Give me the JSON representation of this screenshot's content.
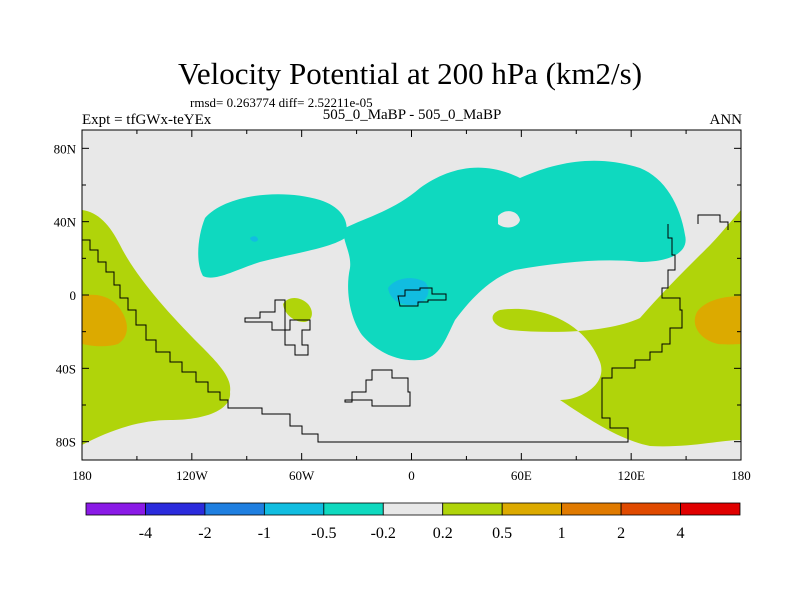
{
  "chart_data": {
    "type": "contour-map",
    "title": "Velocity Potential at 200 hPa (km2/s)",
    "stats_line": "rmsd= 0.263774 diff= 2.52211e-05",
    "left_label": "Expt = tfGWx-teYEx",
    "center_label": "505_0_MaBP - 505_0_MaBP",
    "right_label": "ANN",
    "x_ticks": [
      {
        "value": -180,
        "label": "180"
      },
      {
        "value": -120,
        "label": "120W"
      },
      {
        "value": -60,
        "label": "60W"
      },
      {
        "value": 0,
        "label": "0"
      },
      {
        "value": 60,
        "label": "60E"
      },
      {
        "value": 120,
        "label": "120E"
      },
      {
        "value": 180,
        "label": "180"
      }
    ],
    "y_ticks": [
      {
        "value": 80,
        "label": "80N"
      },
      {
        "value": 40,
        "label": "40N"
      },
      {
        "value": 0,
        "label": "0"
      },
      {
        "value": -40,
        "label": "40S"
      },
      {
        "value": -80,
        "label": "80S"
      }
    ],
    "xlim": [
      -180,
      180
    ],
    "ylim": [
      -90,
      90
    ],
    "colorbar": {
      "colors": [
        "#8a1ae6",
        "#2b2bdc",
        "#1f7fe0",
        "#11bde0",
        "#0fd9bf",
        "#e8e8e8",
        "#b0d40a",
        "#dcaa00",
        "#e07a00",
        "#e04a00",
        "#e00000"
      ],
      "levels": [
        "-4",
        "-2",
        "-1",
        "-0.5",
        "-0.2",
        "0.2",
        "0.5",
        "1",
        "2",
        "4"
      ]
    },
    "fills": {
      "background": "#e8e8e8",
      "neg_weak": "#0fd9bf",
      "neg_mid": "#11bde0",
      "neg_strong": "#1f7fe0",
      "pos_weak": "#b0d40a",
      "pos_mid": "#dcaa00"
    }
  }
}
